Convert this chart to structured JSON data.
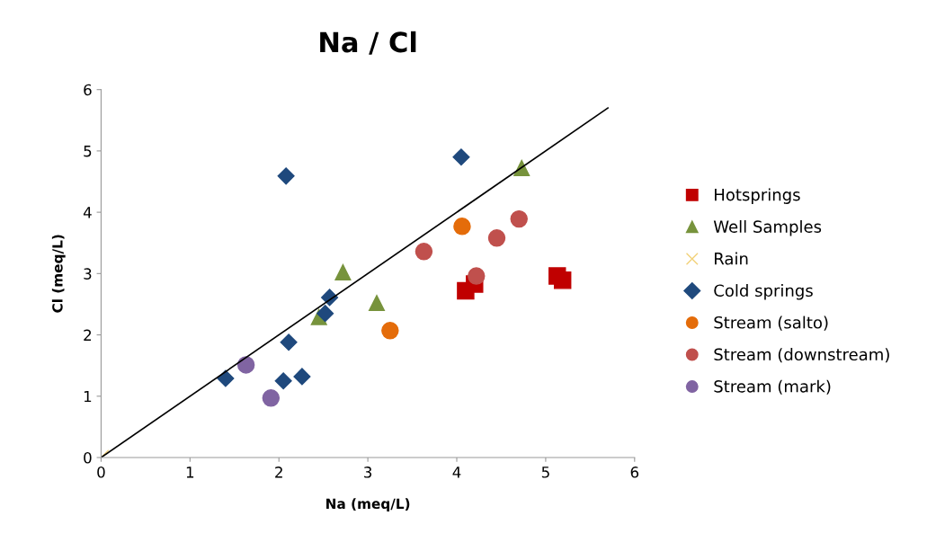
{
  "chart_data": {
    "type": "scatter",
    "title": "Na / Cl",
    "xlabel": "Na (meq/L)",
    "ylabel": "Cl (meq/L)",
    "xlim": [
      0,
      6
    ],
    "ylim": [
      0,
      6
    ],
    "xticks": [
      0,
      1,
      2,
      3,
      4,
      5,
      6
    ],
    "yticks": [
      0,
      1,
      2,
      3,
      4,
      5,
      6
    ],
    "grid": false,
    "legend": "right",
    "series": [
      {
        "name": "Hotsprings",
        "color": "#c00000",
        "marker": "square",
        "x": [
          4.1,
          4.2,
          5.13,
          5.19
        ],
        "values": [
          2.72,
          2.83,
          2.96,
          2.89
        ]
      },
      {
        "name": "Well Samples",
        "color": "#77933c",
        "marker": "triangle",
        "x": [
          2.72,
          3.1,
          2.45,
          4.73
        ],
        "values": [
          3.02,
          2.52,
          2.29,
          4.72
        ]
      },
      {
        "name": "Rain",
        "color": "#f2d27a",
        "marker": "cross",
        "x": [
          0
        ],
        "values": [
          0
        ]
      },
      {
        "name": "Cold springs",
        "color": "#1f497d",
        "marker": "diamond",
        "x": [
          2.08,
          4.05,
          2.57,
          2.52,
          2.11,
          1.4,
          2.05,
          2.26
        ],
        "values": [
          4.59,
          4.9,
          2.61,
          2.35,
          1.88,
          1.29,
          1.25,
          1.32
        ]
      },
      {
        "name": "Stream (salto)",
        "color": "#e46c0a",
        "marker": "circle",
        "x": [
          4.06,
          3.25
        ],
        "values": [
          3.77,
          2.07
        ]
      },
      {
        "name": "Stream (downstream)",
        "color": "#c0504d",
        "marker": "circle",
        "x": [
          3.63,
          4.45,
          4.7,
          4.22
        ],
        "values": [
          3.36,
          3.58,
          3.89,
          2.96
        ]
      },
      {
        "name": "Stream (mark)",
        "color": "#8064a2",
        "marker": "circle",
        "x": [
          1.63,
          1.91
        ],
        "values": [
          1.51,
          0.97
        ]
      },
      {
        "type": "line",
        "color": "#000000",
        "marker": "none",
        "x": [
          0,
          5.7
        ],
        "values": [
          0,
          5.7
        ]
      }
    ]
  }
}
